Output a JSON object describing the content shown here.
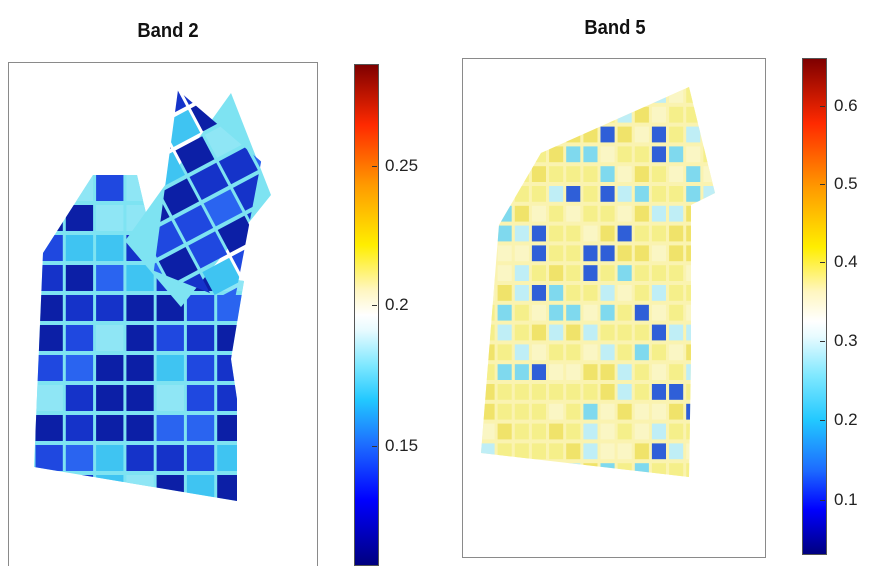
{
  "panels": [
    {
      "title": "Band 2",
      "colorbar_ticks": [
        "0.25",
        "0.2",
        "0.15"
      ],
      "colormap": "jet",
      "field_fill": "#1a36d6",
      "plot_colors": [
        "#0c1fa6",
        "#1533c9",
        "#1f48e0",
        "#2a64f0",
        "#3fc4f2",
        "#8fe6f5"
      ]
    },
    {
      "title": "Band 5",
      "colorbar_ticks": [
        "0.6",
        "0.5",
        "0.4",
        "0.3",
        "0.2",
        "0.1"
      ],
      "colormap": "jet",
      "field_fill": "#f3ee9a",
      "plot_colors": [
        "#f5ef8a",
        "#f0e36a",
        "#faf6c4",
        "#bfeef6",
        "#7fd9ee",
        "#2f5fd8"
      ]
    }
  ]
}
